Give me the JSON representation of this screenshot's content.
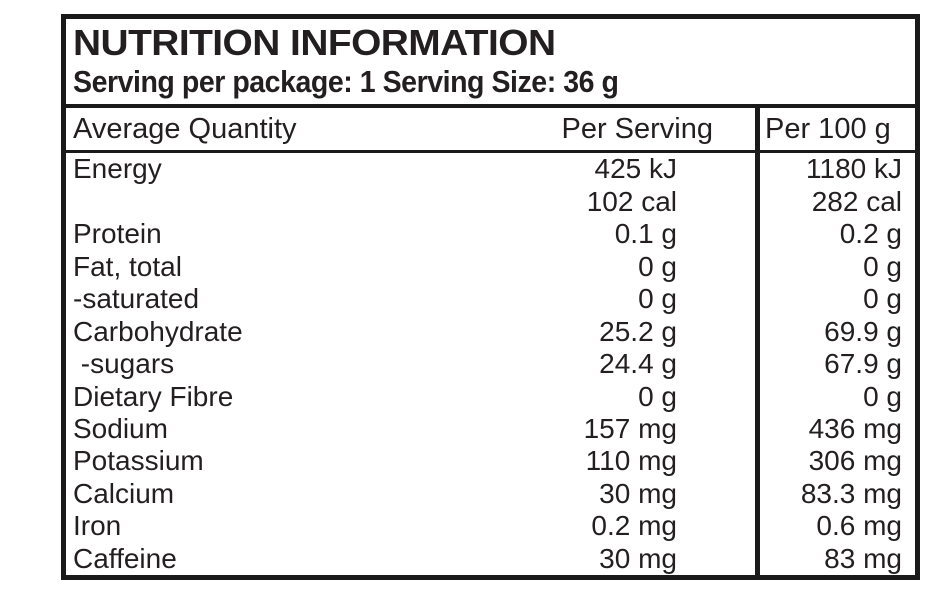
{
  "label": {
    "title": "NUTRITION INFORMATION",
    "subtitle": "Serving per package: 1 Serving Size: 36 g"
  },
  "table": {
    "columns": [
      "Average Quantity",
      "Per Serving",
      "Per 100 g"
    ],
    "rows": [
      {
        "label": "Energy",
        "per_serving": "425 kJ",
        "per_100g": "1180 kJ"
      },
      {
        "label": "",
        "per_serving": "102 cal",
        "per_100g": "282 cal"
      },
      {
        "label": "Protein",
        "per_serving": "0.1 g",
        "per_100g": "0.2 g"
      },
      {
        "label": "Fat, total",
        "per_serving": "0 g",
        "per_100g": "0 g"
      },
      {
        "label": "-saturated",
        "per_serving": "0 g",
        "per_100g": "0 g"
      },
      {
        "label": "Carbohydrate",
        "per_serving": "25.2 g",
        "per_100g": "69.9 g"
      },
      {
        "label": " -sugars",
        "per_serving": "24.4 g",
        "per_100g": "67.9 g"
      },
      {
        "label": "Dietary Fibre",
        "per_serving": "0 g",
        "per_100g": "0 g"
      },
      {
        "label": "Sodium",
        "per_serving": "157 mg",
        "per_100g": "436 mg"
      },
      {
        "label": "Potassium",
        "per_serving": "110 mg",
        "per_100g": "306 mg"
      },
      {
        "label": "Calcium",
        "per_serving": "30 mg",
        "per_100g": "83.3 mg"
      },
      {
        "label": "Iron",
        "per_serving": "0.2 mg",
        "per_100g": "0.6 mg"
      },
      {
        "label": "Caffeine",
        "per_serving": "30 mg",
        "per_100g": "83 mg"
      }
    ]
  },
  "colors": {
    "border": "#1a1a1a",
    "text": "#231f20",
    "background": "#ffffff"
  }
}
